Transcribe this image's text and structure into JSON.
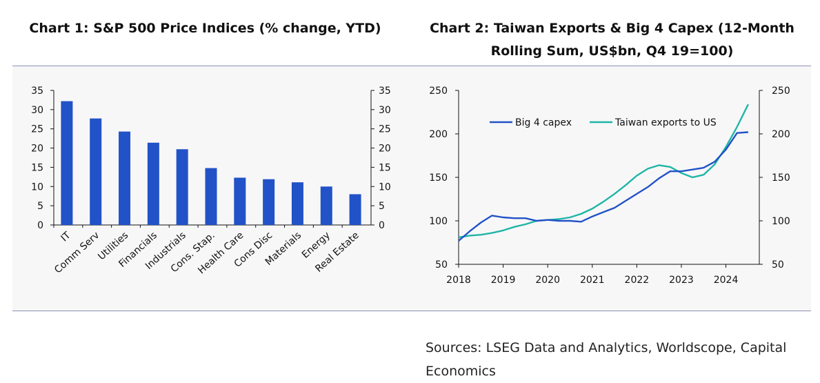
{
  "chart1_title": "Chart 1: S&P 500 Price Indices (% change, YTD)",
  "chart2_title_line1": "Chart 2: Taiwan Exports & Big 4 Capex (12-Month",
  "chart2_title_line2": "Rolling Sum, US$bn, Q4 19=100)",
  "sources": "Sources: LSEG Data and Analytics,  Worldscope, Capital Economics",
  "colors": {
    "bar": "#2252c7",
    "big4": "#2252c7",
    "taiwan": "#1fb5a5",
    "rule": "#8e8fb4"
  },
  "chart_data": [
    {
      "type": "bar",
      "title": "Chart 1: S&P 500 Price Indices (% change, YTD)",
      "categories": [
        "IT",
        "Comm Serv",
        "Utilities",
        "Financials",
        "Industrials",
        "Cons. Stap.",
        "Health Care",
        "Cons Disc",
        "Materials",
        "Energy",
        "Real Estate"
      ],
      "values": [
        32.2,
        27.7,
        24.3,
        21.4,
        19.7,
        14.8,
        12.3,
        11.9,
        11.1,
        10.0,
        8.0
      ],
      "ylim": [
        0,
        35
      ],
      "yticks": [
        "0",
        "5",
        "10",
        "15",
        "20",
        "25",
        "30",
        "35"
      ],
      "dual_axis": true
    },
    {
      "type": "line",
      "title": "Chart 2: Taiwan Exports & Big 4 Capex (12-Month Rolling Sum, US$bn, Q4 19=100)",
      "xlim": [
        2018,
        2024.75
      ],
      "ylim": [
        50,
        250
      ],
      "xticks": [
        "2018",
        "2019",
        "2020",
        "2021",
        "2022",
        "2023",
        "2024"
      ],
      "yticks": [
        "50",
        "100",
        "150",
        "200",
        "250"
      ],
      "legend": "top-left",
      "series": [
        {
          "name": "Big 4 capex",
          "x": [
            2018.0,
            2018.25,
            2018.5,
            2018.75,
            2019.0,
            2019.25,
            2019.5,
            2019.75,
            2020.0,
            2020.25,
            2020.5,
            2020.75,
            2021.0,
            2021.25,
            2021.5,
            2021.75,
            2022.0,
            2022.25,
            2022.5,
            2022.75,
            2023.0,
            2023.25,
            2023.5,
            2023.75,
            2024.0,
            2024.25,
            2024.5
          ],
          "values": [
            77,
            88,
            98,
            106,
            104,
            103,
            103,
            100,
            101,
            100,
            100,
            99,
            105,
            110,
            115,
            123,
            131,
            139,
            149,
            157,
            157,
            159,
            161,
            168,
            182,
            201,
            202
          ]
        },
        {
          "name": "Taiwan exports to US",
          "x": [
            2018.0,
            2018.25,
            2018.5,
            2018.75,
            2019.0,
            2019.25,
            2019.5,
            2019.75,
            2020.0,
            2020.25,
            2020.5,
            2020.75,
            2021.0,
            2021.25,
            2021.5,
            2021.75,
            2022.0,
            2022.25,
            2022.5,
            2022.75,
            2023.0,
            2023.25,
            2023.5,
            2023.75,
            2024.0,
            2024.25,
            2024.5
          ],
          "values": [
            81,
            83,
            84,
            86,
            89,
            93,
            96,
            100,
            101,
            102,
            104,
            108,
            114,
            122,
            131,
            141,
            152,
            160,
            164,
            162,
            155,
            150,
            153,
            165,
            185,
            208,
            234
          ]
        }
      ]
    }
  ]
}
